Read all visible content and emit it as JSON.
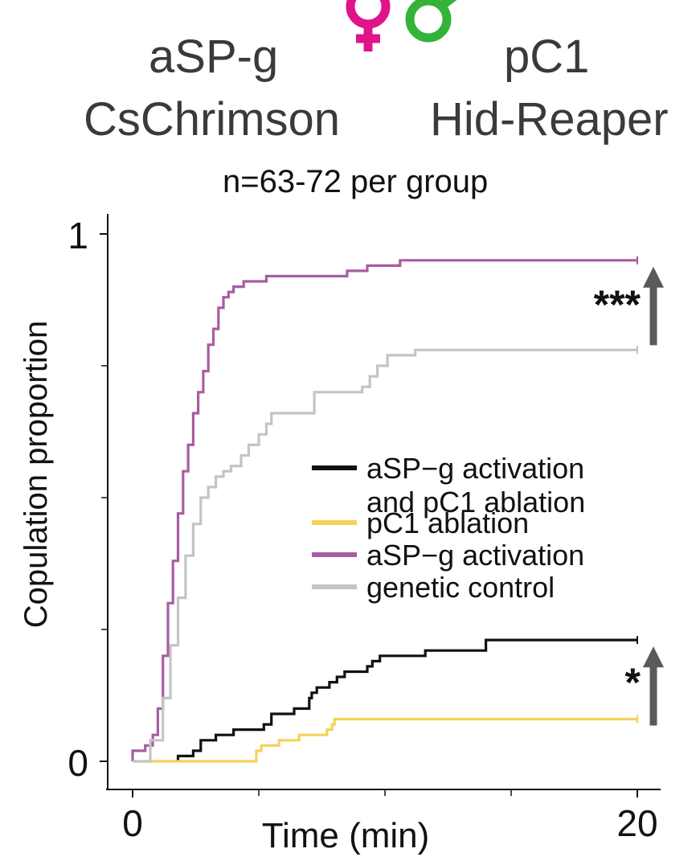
{
  "header": {
    "left_line1": "aSP-g",
    "left_line2": "CsChrimson",
    "right_line1": "pC1",
    "right_line2": "Hid-Reaper",
    "female_color": "#e0138a",
    "male_color": "#33b33a"
  },
  "subtitle": "n=63-72 per group",
  "chart_data": {
    "type": "line",
    "step": true,
    "xlabel": "Time (min)",
    "ylabel": "Copulation proportion",
    "xlim": [
      0,
      20
    ],
    "ylim": [
      0,
      1
    ],
    "xticks": [
      0,
      20
    ],
    "xtick_minor": [
      5,
      10,
      15
    ],
    "yticks": [
      0,
      1
    ],
    "ytick_minor": [
      0.25,
      0.5,
      0.75
    ],
    "series": [
      {
        "name": "aSP−g activation\nand pC1 ablation",
        "color": "#111111",
        "x": [
          1.8,
          2.4,
          2.7,
          3.3,
          4.0,
          5.2,
          5.5,
          6.4,
          7.0,
          7.1,
          7.3,
          7.8,
          8.1,
          8.4,
          9.3,
          9.5,
          9.8,
          11.6,
          14.0,
          20.0
        ],
        "y": [
          0.01,
          0.02,
          0.04,
          0.05,
          0.06,
          0.07,
          0.09,
          0.1,
          0.12,
          0.13,
          0.14,
          0.15,
          0.16,
          0.17,
          0.18,
          0.19,
          0.2,
          0.21,
          0.23,
          0.23
        ]
      },
      {
        "name": "pC1 ablation",
        "color": "#f4d259",
        "x": [
          0.0,
          4.9,
          5.1,
          5.8,
          6.6,
          7.7,
          7.9,
          8.0,
          20.0
        ],
        "y": [
          0.0,
          0.02,
          0.03,
          0.04,
          0.05,
          0.06,
          0.07,
          0.08,
          0.08
        ]
      },
      {
        "name": "aSP−g activation",
        "color": "#a95ca2",
        "x": [
          0.0,
          0.5,
          0.8,
          1.0,
          1.2,
          1.4,
          1.6,
          1.8,
          2.0,
          2.2,
          2.4,
          2.6,
          2.8,
          3.0,
          3.2,
          3.4,
          3.6,
          3.8,
          4.0,
          4.2,
          4.4,
          5.3,
          7.0,
          8.5,
          9.3,
          10.6,
          20.0
        ],
        "y": [
          0.02,
          0.03,
          0.05,
          0.1,
          0.2,
          0.3,
          0.38,
          0.47,
          0.55,
          0.6,
          0.66,
          0.7,
          0.74,
          0.79,
          0.82,
          0.86,
          0.88,
          0.89,
          0.9,
          0.9,
          0.91,
          0.92,
          0.92,
          0.93,
          0.94,
          0.95,
          0.95
        ]
      },
      {
        "name": "genetic control",
        "color": "#c4c4c4",
        "x": [
          0.0,
          0.7,
          1.2,
          1.5,
          1.8,
          2.1,
          2.4,
          2.7,
          3.0,
          3.3,
          3.6,
          3.9,
          4.3,
          4.6,
          5.0,
          5.3,
          5.5,
          6.8,
          7.2,
          9.1,
          9.4,
          9.7,
          10.1,
          11.2,
          20.0
        ],
        "y": [
          0.0,
          0.04,
          0.12,
          0.22,
          0.31,
          0.39,
          0.45,
          0.5,
          0.52,
          0.54,
          0.55,
          0.56,
          0.58,
          0.6,
          0.62,
          0.64,
          0.66,
          0.66,
          0.7,
          0.71,
          0.73,
          0.75,
          0.77,
          0.78,
          0.78
        ]
      }
    ],
    "annotations": [
      {
        "label": "***",
        "from_series": 3,
        "to_series": 2
      },
      {
        "label": "*",
        "from_series": 1,
        "to_series": 0
      }
    ],
    "legend_position": "center-right",
    "arrow_color": "#5a5a5a"
  }
}
